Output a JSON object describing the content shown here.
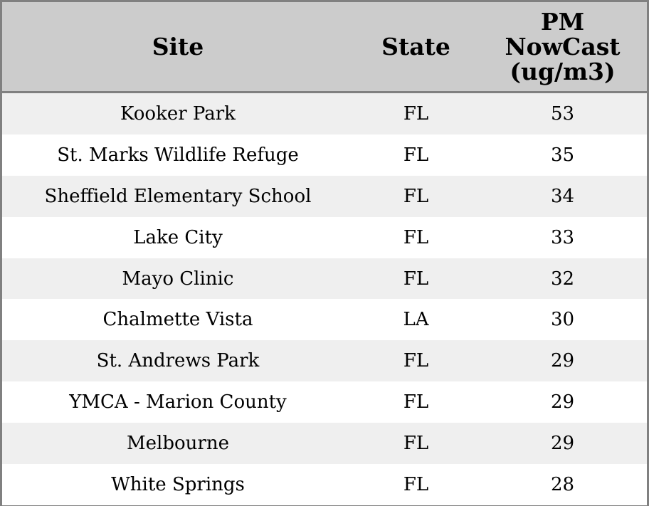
{
  "chart_data": {
    "type": "table",
    "columns": [
      "Site",
      "State",
      "PM\nNowCast\n(ug/m3)"
    ],
    "rows": [
      [
        "Kooker Park",
        "FL",
        "53"
      ],
      [
        "St. Marks Wildlife Refuge",
        "FL",
        "35"
      ],
      [
        "Sheffield Elementary School",
        "FL",
        "34"
      ],
      [
        "Lake City",
        "FL",
        "33"
      ],
      [
        "Mayo Clinic",
        "FL",
        "32"
      ],
      [
        "Chalmette Vista",
        "LA",
        "30"
      ],
      [
        "St. Andrews Park",
        "FL",
        "29"
      ],
      [
        "YMCA - Marion County",
        "FL",
        "29"
      ],
      [
        "Melbourne",
        "FL",
        "29"
      ],
      [
        "White Springs",
        "FL",
        "28"
      ]
    ]
  },
  "colors": {
    "header_bg": "#cccccc",
    "row_alt_bg": "#efefef",
    "row_bg": "#ffffff",
    "border": "#808080"
  }
}
